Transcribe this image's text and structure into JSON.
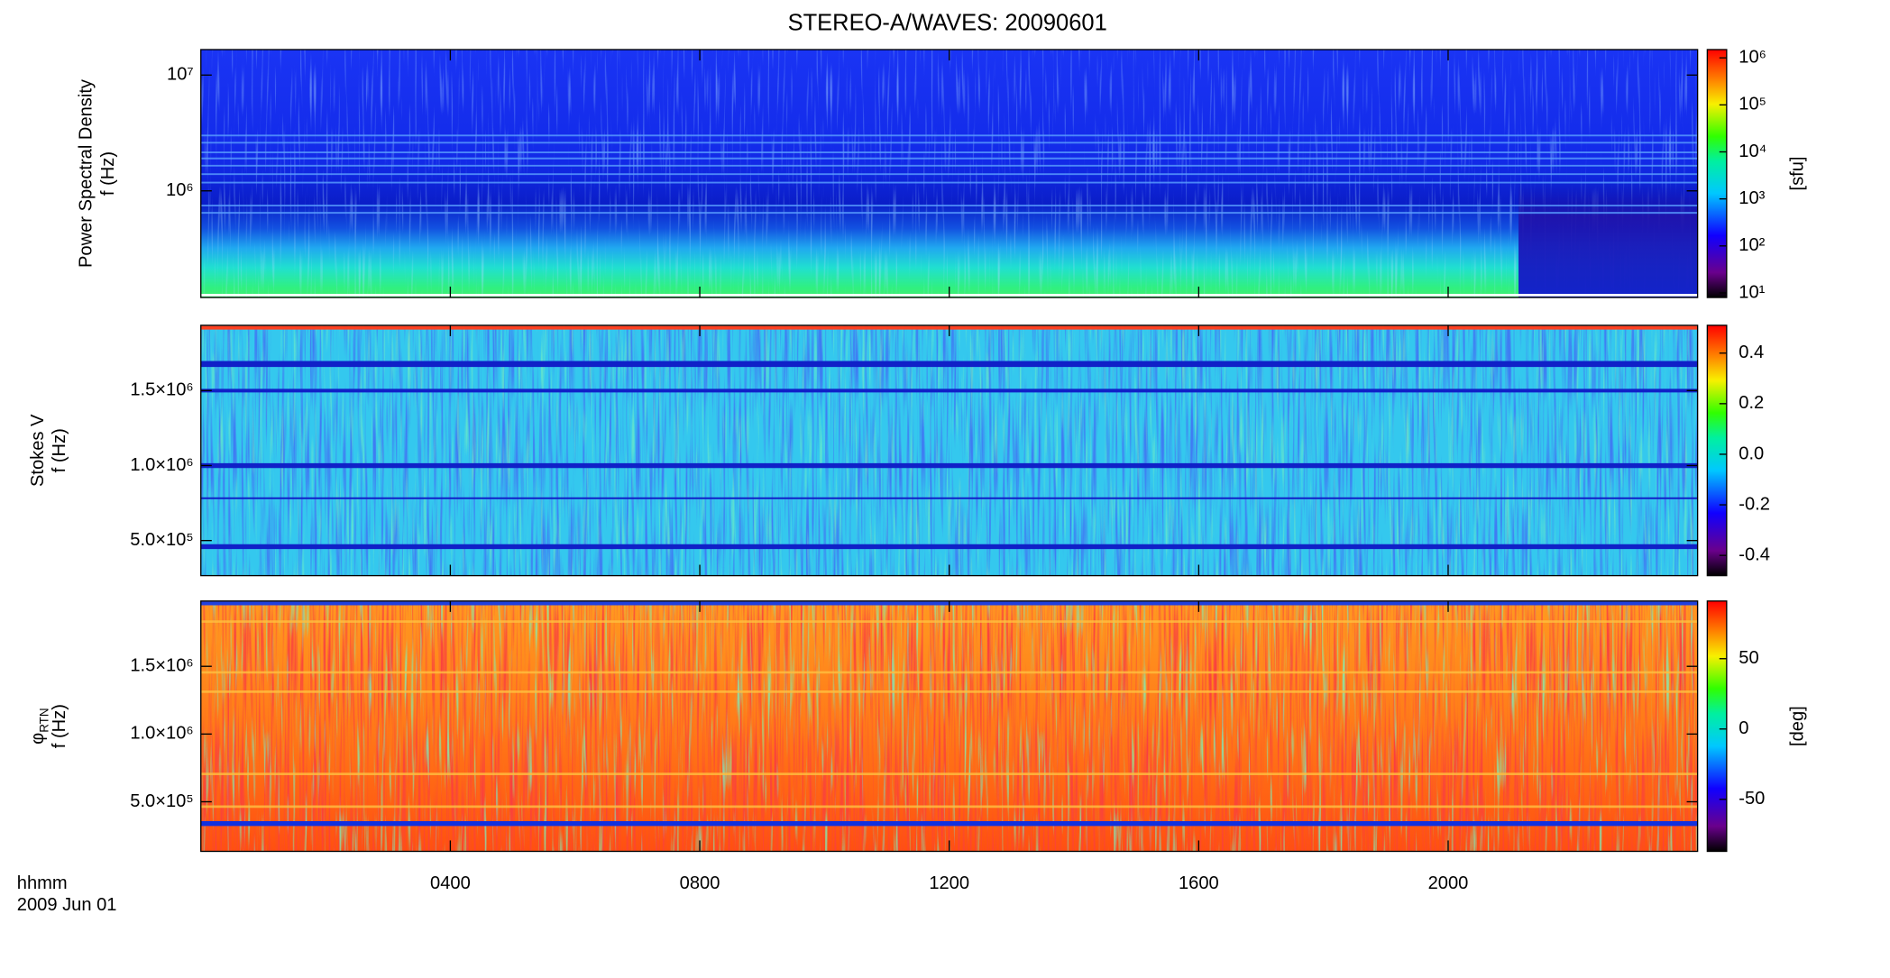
{
  "title": "STEREO-A/WAVES: 20090601",
  "time_axis": {
    "label": "hhmm",
    "date": "2009 Jun 01",
    "xlim": [
      0,
      24
    ],
    "xticks": [
      {
        "value": 4,
        "label": "0400"
      },
      {
        "value": 8,
        "label": "0800"
      },
      {
        "value": 12,
        "label": "1200"
      },
      {
        "value": 16,
        "label": "1600"
      },
      {
        "value": 20,
        "label": "2000"
      }
    ]
  },
  "chart_data": [
    {
      "type": "heatmap",
      "ylabel": [
        "Power Spectral Density",
        "f (Hz)"
      ],
      "ylog": true,
      "ylim": [
        120000,
        16600000
      ],
      "yticks": [
        {
          "value": 1000000,
          "label": "10⁶"
        },
        {
          "value": 10000000,
          "label": "10⁷"
        }
      ],
      "zlog": true,
      "zlim": [
        8,
        1500000
      ],
      "zticks": [
        {
          "value": 10,
          "label": "10¹"
        },
        {
          "value": 100,
          "label": "10²"
        },
        {
          "value": 1000,
          "label": "10³"
        },
        {
          "value": 10000,
          "label": "10⁴"
        },
        {
          "value": 100000,
          "label": "10⁵"
        },
        {
          "value": 1000000,
          "label": "10⁶"
        }
      ],
      "zlabel": "[sfu]"
    },
    {
      "type": "heatmap",
      "ylabel": [
        "Stokes V",
        "f (Hz)"
      ],
      "ylog": false,
      "ylim": [
        266000,
        1935000
      ],
      "yticks": [
        {
          "value": 500000,
          "label": "5.0×10⁵"
        },
        {
          "value": 1000000,
          "label": "1.0×10⁶"
        },
        {
          "value": 1500000,
          "label": "1.5×10⁶"
        }
      ],
      "zlog": false,
      "zlim": [
        -0.48,
        0.51
      ],
      "zticks": [
        0.4,
        0.2,
        {
          "value": 0,
          "label": "0.0"
        },
        -0.2,
        -0.4
      ]
    },
    {
      "type": "heatmap",
      "ylabel": [
        "φ",
        "f (Hz)"
      ],
      "ylabel_subscript": "RTN",
      "ylog": false,
      "ylim": [
        134000,
        1982000
      ],
      "yticks": [
        {
          "value": 500000,
          "label": "5.0×10⁵"
        },
        {
          "value": 1000000,
          "label": "1.0×10⁶"
        },
        {
          "value": 1500000,
          "label": "1.5×10⁶"
        }
      ],
      "zlog": false,
      "zlim": [
        -87,
        91
      ],
      "zticks": [
        50,
        0,
        -50
      ],
      "zlabel": "[deg]"
    }
  ]
}
